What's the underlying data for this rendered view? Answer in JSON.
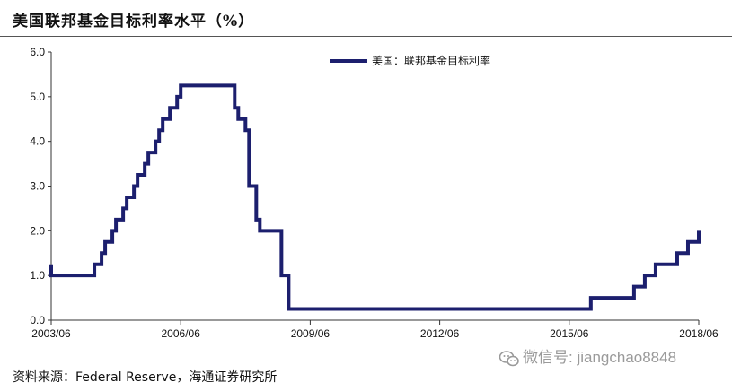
{
  "header": {
    "title": "美国联邦基金目标利率水平（%）"
  },
  "footer": {
    "source": "资料来源：Federal Reserve，海通证券研究所"
  },
  "watermark": {
    "text": "微信号: jiangchao8848",
    "icon": "wechat-icon"
  },
  "chart_data": {
    "type": "line",
    "step": true,
    "legend_position": "top-right",
    "grid": false,
    "xlim": [
      "2003/06",
      "2018/06"
    ],
    "ylim": [
      0,
      6
    ],
    "x_ticks": [
      "2003/06",
      "2006/06",
      "2009/06",
      "2012/06",
      "2015/06",
      "2018/06"
    ],
    "y_ticks": [
      "0.0",
      "1.0",
      "2.0",
      "3.0",
      "4.0",
      "5.0",
      "6.0"
    ],
    "series": [
      {
        "name": "美国：联邦基金目标利率",
        "color": "#1c1f6e",
        "points": [
          [
            "2003/06",
            1.25
          ],
          [
            "2003/06",
            1.0
          ],
          [
            "2004/06",
            1.25
          ],
          [
            "2004/08",
            1.5
          ],
          [
            "2004/09",
            1.75
          ],
          [
            "2004/11",
            2.0
          ],
          [
            "2004/12",
            2.25
          ],
          [
            "2005/02",
            2.5
          ],
          [
            "2005/03",
            2.75
          ],
          [
            "2005/05",
            3.0
          ],
          [
            "2005/06",
            3.25
          ],
          [
            "2005/08",
            3.5
          ],
          [
            "2005/09",
            3.75
          ],
          [
            "2005/11",
            4.0
          ],
          [
            "2005/12",
            4.25
          ],
          [
            "2006/01",
            4.5
          ],
          [
            "2006/03",
            4.75
          ],
          [
            "2006/05",
            5.0
          ],
          [
            "2006/06",
            5.25
          ],
          [
            "2007/09",
            4.75
          ],
          [
            "2007/10",
            4.5
          ],
          [
            "2007/12",
            4.25
          ],
          [
            "2008/01",
            3.0
          ],
          [
            "2008/03",
            2.25
          ],
          [
            "2008/04",
            2.0
          ],
          [
            "2008/10",
            1.0
          ],
          [
            "2008/12",
            0.25
          ],
          [
            "2015/12",
            0.5
          ],
          [
            "2016/12",
            0.75
          ],
          [
            "2017/03",
            1.0
          ],
          [
            "2017/06",
            1.25
          ],
          [
            "2017/12",
            1.5
          ],
          [
            "2018/03",
            1.75
          ],
          [
            "2018/06",
            2.0
          ]
        ]
      }
    ]
  }
}
